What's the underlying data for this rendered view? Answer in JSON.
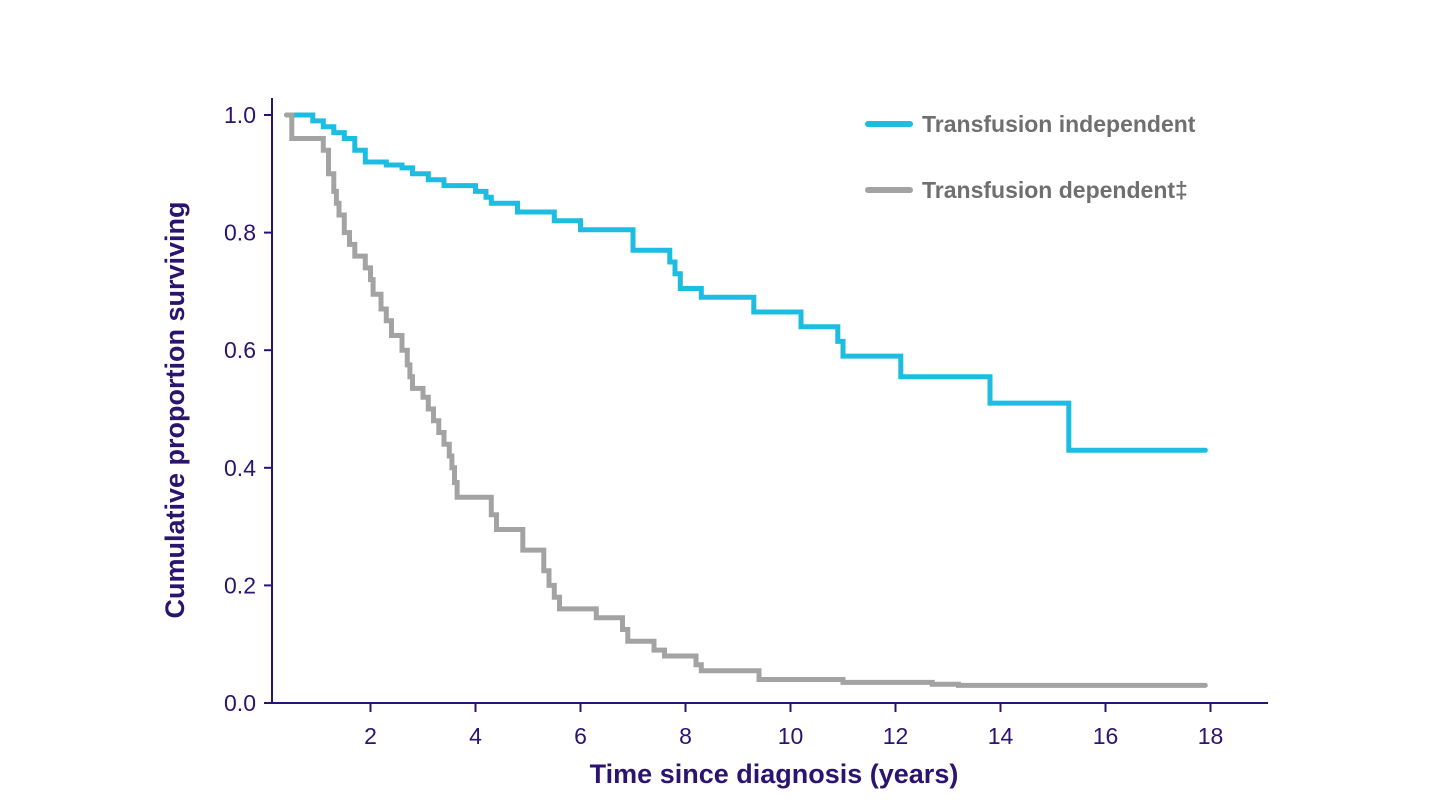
{
  "chart_data": {
    "type": "line",
    "step": true,
    "xlabel": "Time since diagnosis (years)",
    "ylabel": "Cumulative proportion surviving",
    "xlim": [
      0,
      19
    ],
    "ylim": [
      0,
      1.0
    ],
    "xticks": [
      2,
      4,
      6,
      8,
      10,
      12,
      14,
      16,
      18
    ],
    "xtick_labels": [
      "2",
      "4",
      "6",
      "8",
      "10",
      "12",
      "14",
      "16",
      "18"
    ],
    "yticks": [
      0,
      0.2,
      0.4,
      0.6,
      0.8,
      1.0
    ],
    "ytick_labels": [
      "0.0",
      "0.2",
      "0.4",
      "0.6",
      "0.8",
      "1.0"
    ],
    "grid": false,
    "legend_position": "top-right",
    "series": [
      {
        "name": "Transfusion independent",
        "color": "#1cbde0",
        "points": [
          [
            0.4,
            1.0
          ],
          [
            0.9,
            0.99
          ],
          [
            1.1,
            0.98
          ],
          [
            1.3,
            0.97
          ],
          [
            1.5,
            0.96
          ],
          [
            1.7,
            0.94
          ],
          [
            1.9,
            0.92
          ],
          [
            2.3,
            0.915
          ],
          [
            2.6,
            0.91
          ],
          [
            2.8,
            0.9
          ],
          [
            3.1,
            0.89
          ],
          [
            3.4,
            0.88
          ],
          [
            4.0,
            0.87
          ],
          [
            4.2,
            0.86
          ],
          [
            4.3,
            0.85
          ],
          [
            4.8,
            0.835
          ],
          [
            5.5,
            0.82
          ],
          [
            6.0,
            0.805
          ],
          [
            7.0,
            0.77
          ],
          [
            7.7,
            0.75
          ],
          [
            7.8,
            0.73
          ],
          [
            7.9,
            0.705
          ],
          [
            8.3,
            0.69
          ],
          [
            9.3,
            0.665
          ],
          [
            10.2,
            0.64
          ],
          [
            10.9,
            0.615
          ],
          [
            11.0,
            0.59
          ],
          [
            12.1,
            0.555
          ],
          [
            13.8,
            0.51
          ],
          [
            15.3,
            0.43
          ],
          [
            17.9,
            0.43
          ]
        ]
      },
      {
        "name": "Transfusion dependent‡",
        "color": "#a3a3a3",
        "points": [
          [
            0.4,
            1.0
          ],
          [
            0.5,
            0.96
          ],
          [
            1.1,
            0.94
          ],
          [
            1.2,
            0.9
          ],
          [
            1.3,
            0.87
          ],
          [
            1.35,
            0.85
          ],
          [
            1.4,
            0.83
          ],
          [
            1.5,
            0.8
          ],
          [
            1.6,
            0.78
          ],
          [
            1.7,
            0.76
          ],
          [
            1.9,
            0.74
          ],
          [
            2.0,
            0.72
          ],
          [
            2.05,
            0.695
          ],
          [
            2.2,
            0.67
          ],
          [
            2.3,
            0.65
          ],
          [
            2.4,
            0.625
          ],
          [
            2.6,
            0.6
          ],
          [
            2.7,
            0.575
          ],
          [
            2.75,
            0.555
          ],
          [
            2.8,
            0.535
          ],
          [
            3.0,
            0.52
          ],
          [
            3.1,
            0.5
          ],
          [
            3.2,
            0.48
          ],
          [
            3.3,
            0.46
          ],
          [
            3.4,
            0.44
          ],
          [
            3.5,
            0.42
          ],
          [
            3.55,
            0.4
          ],
          [
            3.6,
            0.375
          ],
          [
            3.65,
            0.35
          ],
          [
            4.3,
            0.32
          ],
          [
            4.4,
            0.295
          ],
          [
            4.9,
            0.26
          ],
          [
            5.3,
            0.225
          ],
          [
            5.4,
            0.2
          ],
          [
            5.5,
            0.18
          ],
          [
            5.6,
            0.16
          ],
          [
            6.3,
            0.145
          ],
          [
            6.8,
            0.125
          ],
          [
            6.9,
            0.105
          ],
          [
            7.4,
            0.09
          ],
          [
            7.6,
            0.08
          ],
          [
            8.2,
            0.065
          ],
          [
            8.3,
            0.055
          ],
          [
            9.4,
            0.04
          ],
          [
            11.0,
            0.035
          ],
          [
            12.7,
            0.032
          ],
          [
            13.2,
            0.03
          ],
          [
            17.9,
            0.03
          ]
        ]
      }
    ]
  }
}
